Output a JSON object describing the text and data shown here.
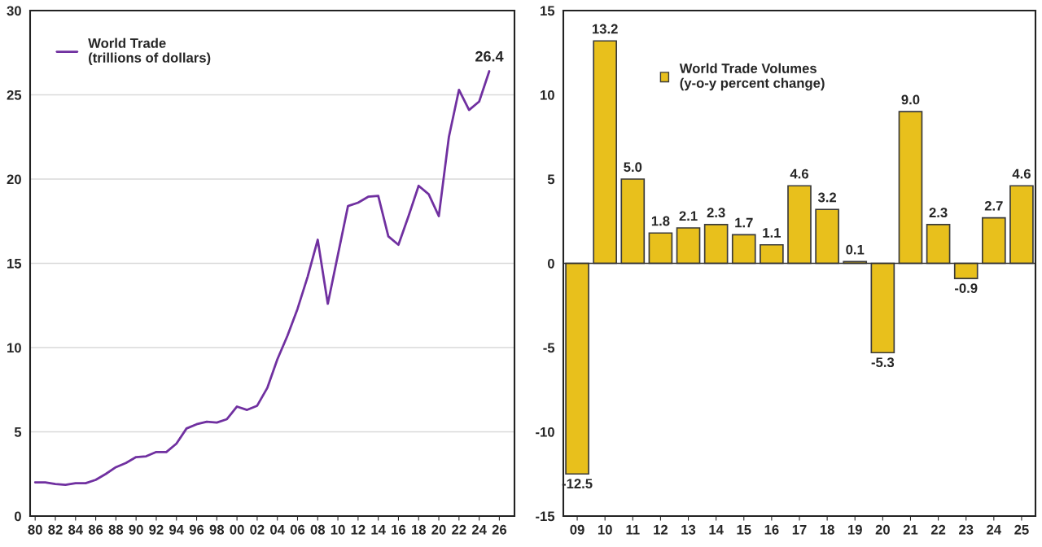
{
  "chart_data": [
    {
      "type": "line",
      "x": [
        1980,
        1981,
        1982,
        1983,
        1984,
        1985,
        1986,
        1987,
        1988,
        1989,
        1990,
        1991,
        1992,
        1993,
        1994,
        1995,
        1996,
        1997,
        1998,
        1999,
        2000,
        2001,
        2002,
        2003,
        2004,
        2005,
        2006,
        2007,
        2008,
        2009,
        2010,
        2011,
        2012,
        2013,
        2014,
        2015,
        2016,
        2017,
        2018,
        2019,
        2020,
        2021,
        2022,
        2023,
        2024,
        2025
      ],
      "series": [
        {
          "name": "World Trade\n(trillions of dollars)",
          "color": "#7030a0",
          "values": [
            2.0,
            2.0,
            1.9,
            1.85,
            1.95,
            1.95,
            2.15,
            2.5,
            2.9,
            3.15,
            3.5,
            3.55,
            3.8,
            3.8,
            4.3,
            5.2,
            5.45,
            5.6,
            5.55,
            5.75,
            6.5,
            6.3,
            6.55,
            7.6,
            9.3,
            10.7,
            12.3,
            14.2,
            16.4,
            12.6,
            15.5,
            18.4,
            18.6,
            18.95,
            19.0,
            16.6,
            16.1,
            17.8,
            19.6,
            19.1,
            17.8,
            22.5,
            25.3,
            24.1,
            24.6,
            26.4
          ],
          "value_labels": [
            null,
            null,
            null,
            null,
            null,
            null,
            null,
            null,
            null,
            null,
            null,
            null,
            null,
            null,
            null,
            null,
            null,
            null,
            null,
            null,
            null,
            null,
            null,
            null,
            null,
            null,
            null,
            null,
            null,
            null,
            null,
            null,
            null,
            null,
            null,
            null,
            null,
            null,
            null,
            null,
            null,
            null,
            null,
            null,
            null,
            "26.4"
          ]
        }
      ],
      "xlim": [
        1979.5,
        2027.5
      ],
      "xticks": [
        {
          "value": 1980,
          "label": "80"
        },
        {
          "value": 1982,
          "label": "82"
        },
        {
          "value": 1984,
          "label": "84"
        },
        {
          "value": 1986,
          "label": "86"
        },
        {
          "value": 1988,
          "label": "88"
        },
        {
          "value": 1990,
          "label": "90"
        },
        {
          "value": 1992,
          "label": "92"
        },
        {
          "value": 1994,
          "label": "94"
        },
        {
          "value": 1996,
          "label": "96"
        },
        {
          "value": 1998,
          "label": "98"
        },
        {
          "value": 2000,
          "label": "00"
        },
        {
          "value": 2002,
          "label": "02"
        },
        {
          "value": 2004,
          "label": "04"
        },
        {
          "value": 2006,
          "label": "06"
        },
        {
          "value": 2008,
          "label": "08"
        },
        {
          "value": 2010,
          "label": "10"
        },
        {
          "value": 2012,
          "label": "12"
        },
        {
          "value": 2014,
          "label": "14"
        },
        {
          "value": 2016,
          "label": "16"
        },
        {
          "value": 2018,
          "label": "18"
        },
        {
          "value": 2020,
          "label": "20"
        },
        {
          "value": 2022,
          "label": "22"
        },
        {
          "value": 2024,
          "label": "24"
        },
        {
          "value": 2026,
          "label": "26"
        }
      ],
      "ylim": [
        0,
        30
      ],
      "yticks": [
        0,
        5,
        10,
        15,
        20,
        25,
        30
      ],
      "grid": "y",
      "legend": "top left"
    },
    {
      "type": "bar",
      "categories": [
        "09",
        "10",
        "11",
        "12",
        "13",
        "14",
        "15",
        "16",
        "17",
        "18",
        "19",
        "20",
        "21",
        "22",
        "23",
        "24",
        "25"
      ],
      "series": [
        {
          "name": "World Trade Volumes\n(y-o-y percent change)",
          "color": "#e8c01c",
          "values": [
            -12.5,
            13.2,
            5.0,
            1.8,
            2.1,
            2.3,
            1.7,
            1.1,
            4.6,
            3.2,
            0.1,
            -5.3,
            9.0,
            2.3,
            -0.9,
            2.7,
            4.6
          ],
          "value_labels": [
            "-12.5",
            "13.2",
            "5.0",
            "1.8",
            "2.1",
            "2.3",
            "1.7",
            "1.1",
            "4.6",
            "3.2",
            "0.1",
            "-5.3",
            "9.0",
            "2.3",
            "-0.9",
            "2.7",
            "4.6"
          ]
        }
      ],
      "ylim": [
        -15,
        15
      ],
      "yticks": [
        -15,
        -10,
        -5,
        0,
        5,
        10,
        15
      ],
      "legend": "top left"
    }
  ]
}
